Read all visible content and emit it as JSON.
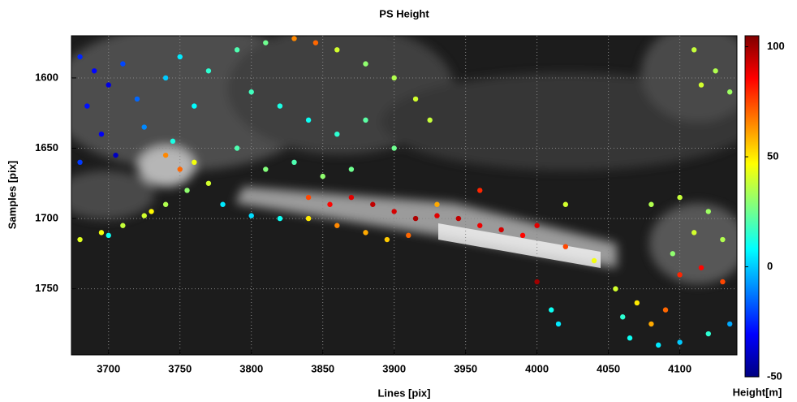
{
  "chart_data": {
    "type": "scatter",
    "title": "PS Height",
    "x_label": "Lines [pix]",
    "y_label": "Samples [pix]",
    "xlim": [
      3674,
      4140
    ],
    "xticks": [
      3700,
      3750,
      3800,
      3850,
      3900,
      3950,
      4000,
      4050,
      4100
    ],
    "ylim": [
      1570,
      1797
    ],
    "yticks": [
      1600,
      1650,
      1700,
      1750
    ],
    "y_inverted": true,
    "grid": true,
    "colormap": "jet",
    "colorbar": {
      "label": "Height[m]",
      "lim": [
        -50,
        105
      ],
      "ticks": [
        -50,
        0,
        50,
        100
      ]
    },
    "x": [
      3680,
      3690,
      3700,
      3685,
      3710,
      3720,
      3695,
      3705,
      3680,
      3725,
      3740,
      3750,
      3760,
      3745,
      3770,
      3790,
      3810,
      3830,
      3845,
      3860,
      3880,
      3900,
      3915,
      3925,
      3800,
      3820,
      3840,
      3860,
      3880,
      3900,
      3790,
      3810,
      3830,
      3850,
      3870,
      3780,
      3800,
      3820,
      3770,
      3760,
      3740,
      3750,
      3680,
      3695,
      3710,
      3725,
      3740,
      3755,
      3700,
      3730,
      3840,
      3855,
      3870,
      3885,
      3900,
      3915,
      3930,
      3945,
      3960,
      3975,
      3990,
      4000,
      3860,
      3880,
      3895,
      3840,
      3910,
      3930,
      4020,
      4000,
      4040,
      4055,
      4060,
      4070,
      4080,
      4100,
      4120,
      4110,
      4130,
      4095,
      4100,
      4115,
      4130,
      4090,
      4080,
      4065,
      4085,
      4100,
      4120,
      4135,
      4015,
      4010,
      4110,
      4125,
      4135,
      4115,
      3960,
      4020
    ],
    "y": [
      1585,
      1595,
      1605,
      1620,
      1590,
      1615,
      1640,
      1655,
      1660,
      1635,
      1600,
      1585,
      1620,
      1645,
      1595,
      1580,
      1575,
      1572,
      1575,
      1580,
      1590,
      1600,
      1615,
      1630,
      1610,
      1620,
      1630,
      1640,
      1630,
      1650,
      1650,
      1665,
      1660,
      1670,
      1665,
      1690,
      1698,
      1700,
      1675,
      1660,
      1655,
      1665,
      1715,
      1710,
      1705,
      1698,
      1690,
      1680,
      1712,
      1695,
      1685,
      1690,
      1685,
      1690,
      1695,
      1700,
      1698,
      1700,
      1705,
      1708,
      1712,
      1705,
      1705,
      1710,
      1715,
      1700,
      1712,
      1690,
      1720,
      1745,
      1730,
      1750,
      1770,
      1760,
      1690,
      1685,
      1695,
      1710,
      1715,
      1725,
      1740,
      1735,
      1745,
      1765,
      1775,
      1785,
      1790,
      1788,
      1782,
      1775,
      1775,
      1765,
      1580,
      1595,
      1610,
      1605,
      1680,
      1690
    ],
    "values": [
      -25,
      -30,
      -35,
      -28,
      -20,
      -15,
      -32,
      -40,
      -22,
      -10,
      0,
      5,
      8,
      12,
      15,
      20,
      25,
      65,
      70,
      40,
      30,
      35,
      40,
      38,
      18,
      12,
      10,
      15,
      22,
      25,
      20,
      28,
      20,
      30,
      25,
      5,
      3,
      10,
      40,
      45,
      65,
      70,
      42,
      45,
      38,
      40,
      35,
      30,
      10,
      48,
      75,
      85,
      90,
      95,
      92,
      98,
      90,
      95,
      88,
      92,
      85,
      90,
      65,
      60,
      55,
      50,
      70,
      60,
      75,
      100,
      45,
      40,
      15,
      50,
      35,
      38,
      32,
      40,
      35,
      30,
      80,
      85,
      75,
      70,
      60,
      10,
      5,
      0,
      15,
      -5,
      5,
      10,
      38,
      35,
      32,
      40,
      80,
      40
    ]
  }
}
